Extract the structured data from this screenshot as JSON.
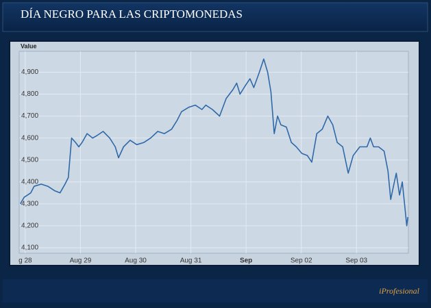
{
  "header": {
    "title": "DÍA NEGRO PARA LAS CRIPTOMONEDAS"
  },
  "footer": {
    "brand": "iProfesional"
  },
  "chart_data": {
    "type": "line",
    "ylabel": "Value",
    "x": [
      -0.09,
      -0.02,
      0.1,
      0.16,
      0.29,
      0.41,
      0.53,
      0.63,
      0.72,
      0.78,
      0.84,
      0.91,
      0.97,
      1.03,
      1.12,
      1.22,
      1.29,
      1.41,
      1.53,
      1.63,
      1.69,
      1.78,
      1.9,
      2.02,
      2.15,
      2.27,
      2.4,
      2.52,
      2.65,
      2.75,
      2.83,
      2.96,
      3.08,
      3.2,
      3.27,
      3.39,
      3.52,
      3.64,
      3.76,
      3.83,
      3.89,
      3.99,
      4.07,
      4.14,
      4.24,
      4.32,
      4.39,
      4.45,
      4.51,
      4.57,
      4.63,
      4.73,
      4.82,
      4.91,
      5.01,
      5.11,
      5.19,
      5.28,
      5.38,
      5.48,
      5.57,
      5.65,
      5.75,
      5.85,
      5.94,
      6.06,
      6.19,
      6.25,
      6.31,
      6.4,
      6.5,
      6.57,
      6.62,
      6.67,
      6.72,
      6.78,
      6.83,
      6.87,
      6.91,
      6.93
    ],
    "series": [
      {
        "name": "Value",
        "color": "#2f68a8",
        "values": [
          4300,
          4330,
          4350,
          4380,
          4390,
          4380,
          4360,
          4350,
          4390,
          4420,
          4600,
          4580,
          4560,
          4580,
          4620,
          4600,
          4610,
          4630,
          4600,
          4560,
          4510,
          4560,
          4590,
          4570,
          4580,
          4600,
          4630,
          4620,
          4640,
          4680,
          4720,
          4740,
          4750,
          4730,
          4750,
          4730,
          4700,
          4780,
          4820,
          4850,
          4800,
          4840,
          4870,
          4830,
          4900,
          4960,
          4900,
          4810,
          4620,
          4700,
          4660,
          4650,
          4580,
          4560,
          4530,
          4520,
          4490,
          4620,
          4640,
          4700,
          4660,
          4580,
          4560,
          4440,
          4520,
          4560,
          4560,
          4600,
          4560,
          4560,
          4540,
          4450,
          4320,
          4380,
          4440,
          4340,
          4400,
          4300,
          4200,
          4240
        ]
      }
    ],
    "xlim": [
      -0.11,
      6.94
    ],
    "xticks": [
      {
        "value": 0,
        "label": "g 28"
      },
      {
        "value": 1,
        "label": "Aug 29"
      },
      {
        "value": 2,
        "label": "Aug 30"
      },
      {
        "value": 3,
        "label": "Aug 31"
      },
      {
        "value": 4,
        "label": "Sep"
      },
      {
        "value": 5,
        "label": "Sep 02"
      },
      {
        "value": 6,
        "label": "Sep 03"
      }
    ],
    "ylim": [
      4075,
      4995
    ],
    "yticks": [
      {
        "value": 4100,
        "label": "4,100"
      },
      {
        "value": 4200,
        "label": "4,200"
      },
      {
        "value": 4300,
        "label": "4,300"
      },
      {
        "value": 4400,
        "label": "4,400"
      },
      {
        "value": 4500,
        "label": "4,500"
      },
      {
        "value": 4600,
        "label": "4,600"
      },
      {
        "value": 4700,
        "label": "4,700"
      },
      {
        "value": 4800,
        "label": "4,800"
      },
      {
        "value": 4900,
        "label": "4,900"
      }
    ],
    "grid": true
  }
}
